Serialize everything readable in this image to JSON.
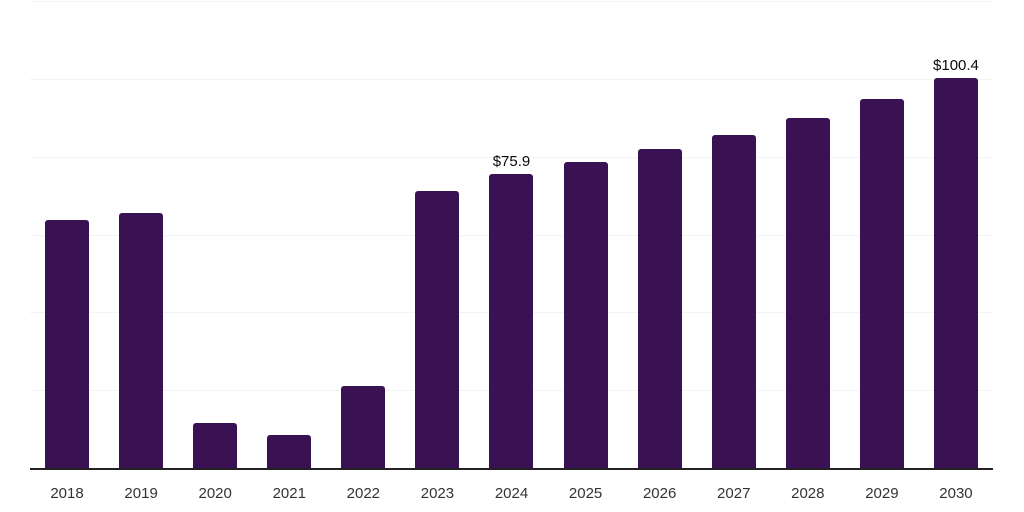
{
  "chart_data": {
    "type": "bar",
    "title": "",
    "xlabel": "",
    "ylabel": "",
    "categories": [
      "2018",
      "2019",
      "2020",
      "2021",
      "2022",
      "2023",
      "2024",
      "2025",
      "2026",
      "2027",
      "2028",
      "2029",
      "2030"
    ],
    "values": [
      63.9,
      65.9,
      11.9,
      8.7,
      21.3,
      71.4,
      75.9,
      78.9,
      82.2,
      85.9,
      90.2,
      95.2,
      100.4
    ],
    "data_labels": {
      "2024": "$75.9",
      "2030": "$100.4"
    },
    "value_prefix": "$",
    "ylim": [
      0,
      120
    ],
    "gridline_step": 20,
    "grid": true,
    "legend": false,
    "colors": {
      "bar": "#3a1153",
      "gridline": "#f3f3f3",
      "axis_line": "#222222",
      "tick_label": "#333333",
      "value_label": "#0a0a0a",
      "background": "#ffffff"
    }
  }
}
